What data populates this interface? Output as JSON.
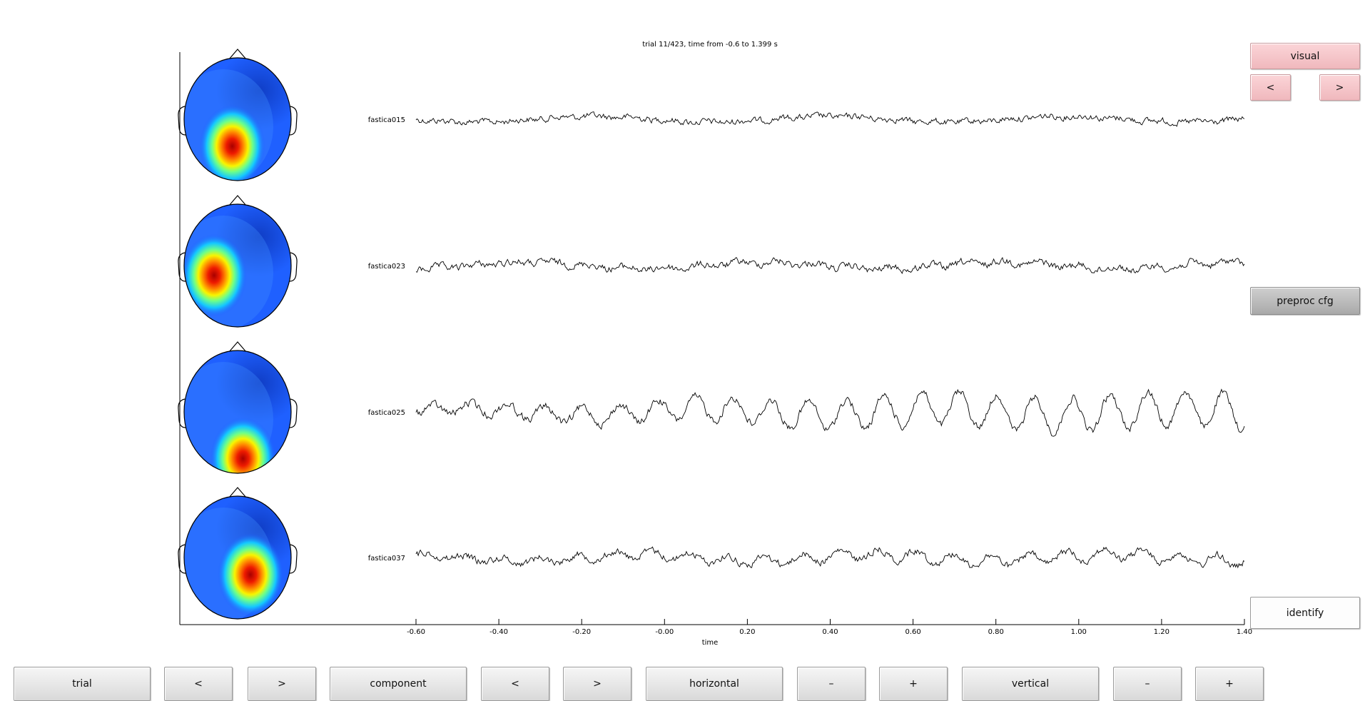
{
  "plot": {
    "title": "trial 11/423, time from -0.6 to 1.399 s",
    "xlabel": "time",
    "xticks": [
      "-0.60",
      "-0.40",
      "-0.20",
      "-0.00",
      "0.20",
      "0.40",
      "0.60",
      "0.80",
      "1.00",
      "1.20",
      "1.40"
    ],
    "components": [
      {
        "label": "fastica015",
        "hot": [
          0.45,
          0.72
        ],
        "amp": 0.8,
        "slow": 0.15
      },
      {
        "label": "fastica023",
        "hot": [
          0.28,
          0.58
        ],
        "amp": 0.9,
        "slow": 0.3
      },
      {
        "label": "fastica025",
        "hot": [
          0.55,
          0.88
        ],
        "amp": 1.0,
        "slow": 1.0
      },
      {
        "label": "fastica037",
        "hot": [
          0.62,
          0.64
        ],
        "amp": 0.9,
        "slow": 0.55
      }
    ]
  },
  "chart_data": {
    "type": "line",
    "title": "trial 11/423, time from -0.6 to 1.399 s",
    "xlabel": "time",
    "xlim": [
      -0.6,
      1.4
    ],
    "series": [
      {
        "name": "fastica015"
      },
      {
        "name": "fastica023"
      },
      {
        "name": "fastica025"
      },
      {
        "name": "fastica037"
      }
    ]
  },
  "side": {
    "visual": "visual",
    "prev": "<",
    "next": ">",
    "preproc": "preproc cfg",
    "identify": "identify"
  },
  "bottom": {
    "trial": "trial",
    "trial_prev": "<",
    "trial_next": ">",
    "component": "component",
    "comp_prev": "<",
    "comp_next": ">",
    "horizontal": "horizontal",
    "h_minus": "–",
    "h_plus": "+",
    "vertical": "vertical",
    "v_minus": "–",
    "v_plus": "+"
  },
  "colors": {
    "pink_button": "#f4c3c7",
    "gray_button": "#e2e2e2",
    "dark_button": "#b8b8b8"
  }
}
